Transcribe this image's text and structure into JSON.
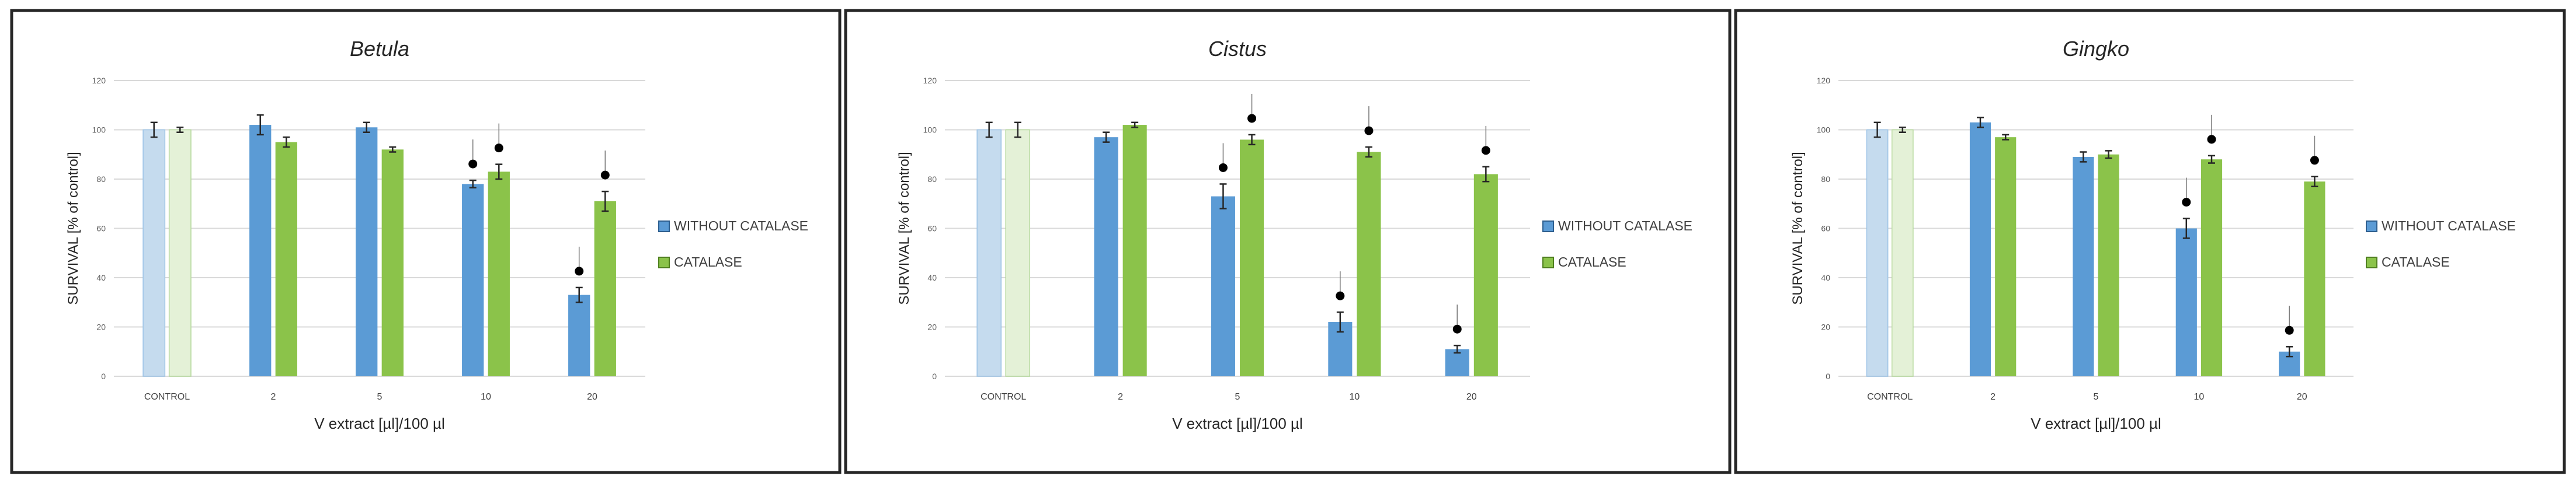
{
  "chart_data": [
    {
      "type": "bar",
      "title": "Betula",
      "xlabel": "V extract [µl]/100 µl",
      "ylabel": "SURVIVAL [% of control]",
      "ylim": [
        0,
        120
      ],
      "yticks": [
        "0",
        "20",
        "40",
        "60",
        "80",
        "100",
        "120"
      ],
      "categories": [
        "CONTROL",
        "2",
        "5",
        "10",
        "20"
      ],
      "series": [
        {
          "name": "WITHOUT CATALASE",
          "values": [
            100,
            102,
            101,
            78,
            33
          ],
          "errors": [
            3,
            4,
            2,
            1.5,
            3
          ],
          "color": "#5b9bd5",
          "control_color": "#c5dbee"
        },
        {
          "name": "CATALASE",
          "values": [
            100,
            95,
            92,
            83,
            71
          ],
          "errors": [
            1,
            2,
            1,
            3,
            4
          ],
          "color": "#8bc34a",
          "control_color": "#e4f1d7"
        }
      ],
      "significant": [
        [
          false,
          false,
          false,
          true,
          true
        ],
        [
          false,
          false,
          false,
          true,
          true
        ]
      ],
      "legend": "right",
      "grid": true
    },
    {
      "type": "bar",
      "title": "Cistus",
      "xlabel": "V extract [µl]/100 µl",
      "ylabel": "SURVIVAL [% of control]",
      "ylim": [
        0,
        120
      ],
      "yticks": [
        "0",
        "20",
        "40",
        "60",
        "80",
        "100",
        "120"
      ],
      "categories": [
        "CONTROL",
        "2",
        "5",
        "10",
        "20"
      ],
      "series": [
        {
          "name": "WITHOUT CATALASE",
          "values": [
            100,
            97,
            73,
            22,
            11
          ],
          "errors": [
            3,
            2,
            5,
            4,
            1.5
          ],
          "color": "#5b9bd5",
          "control_color": "#c5dbee"
        },
        {
          "name": "CATALASE",
          "values": [
            100,
            102,
            96,
            91,
            82
          ],
          "errors": [
            3,
            1,
            2,
            2,
            3
          ],
          "color": "#8bc34a",
          "control_color": "#e4f1d7"
        }
      ],
      "significant": [
        [
          false,
          false,
          true,
          true,
          true
        ],
        [
          false,
          false,
          true,
          true,
          true
        ]
      ],
      "legend": "right",
      "grid": true
    },
    {
      "type": "bar",
      "title": "Gingko",
      "xlabel": "V extract [µl]/100 µl",
      "ylabel": "SURVIVAL [% of control]",
      "ylim": [
        0,
        120
      ],
      "yticks": [
        "0",
        "20",
        "40",
        "60",
        "80",
        "100",
        "120"
      ],
      "categories": [
        "CONTROL",
        "2",
        "5",
        "10",
        "20"
      ],
      "series": [
        {
          "name": "WITHOUT CATALASE",
          "values": [
            100,
            103,
            89,
            60,
            10
          ],
          "errors": [
            3,
            2,
            2,
            4,
            2
          ],
          "color": "#5b9bd5",
          "control_color": "#c5dbee"
        },
        {
          "name": "CATALASE",
          "values": [
            100,
            97,
            90,
            88,
            79
          ],
          "errors": [
            1,
            1,
            1.5,
            1.5,
            2
          ],
          "color": "#8bc34a",
          "control_color": "#e4f1d7"
        }
      ],
      "significant": [
        [
          false,
          false,
          false,
          true,
          true
        ],
        [
          false,
          false,
          false,
          true,
          true
        ]
      ],
      "legend": "right",
      "grid": true
    }
  ]
}
